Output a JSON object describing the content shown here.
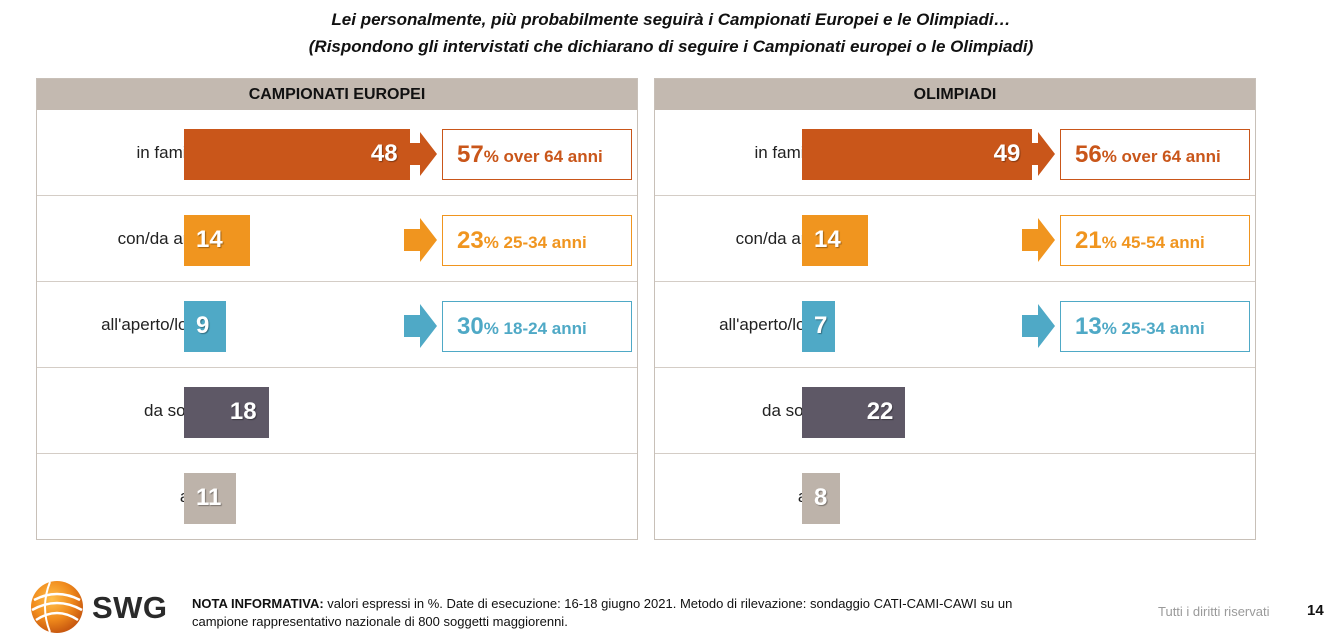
{
  "title_line1": "Lei personalmente, più probabilmente seguirà i Campionati Europei e le Olimpiadi…",
  "title_line2": "(Rispondono gli intervistati che dichiarano di seguire i Campionati europei o le Olimpiadi)",
  "colors": {
    "famiglia": "#c9561a",
    "amici": "#f0951f",
    "aperto": "#4fa9c6",
    "solo": "#5e5866",
    "altro": "#bdb3aa",
    "header_bg": "#c3b9b0"
  },
  "chart_data": [
    {
      "type": "bar",
      "title": "CAMPIONATI EUROPEI",
      "categories": [
        "in famiglia",
        "con/da amici",
        "all'aperto/locali",
        "da solo/a",
        "altro"
      ],
      "values": [
        48,
        14,
        9,
        18,
        11
      ],
      "annotations": [
        {
          "category": "in famiglia",
          "value": "57",
          "text": "% over 64 anni"
        },
        {
          "category": "con/da amici",
          "value": "23",
          "text": "% 25-34 anni"
        },
        {
          "category": "all'aperto/locali",
          "value": "30",
          "text": "% 18-24 anni"
        }
      ]
    },
    {
      "type": "bar",
      "title": "OLIMPIADI",
      "categories": [
        "in famiglia",
        "con/da amici",
        "all'aperto/locali",
        "da solo/a",
        "altro"
      ],
      "values": [
        49,
        14,
        7,
        22,
        8
      ],
      "annotations": [
        {
          "category": "in famiglia",
          "value": "56",
          "text": "% over 64 anni"
        },
        {
          "category": "con/da amici",
          "value": "21",
          "text": "% 45-54 anni"
        },
        {
          "category": "all'aperto/locali",
          "value": "13",
          "text": "% 25-34 anni"
        }
      ]
    }
  ],
  "footer": {
    "brand": "SWG",
    "note_label": "NOTA INFORMATIVA:",
    "note_text": " valori espressi in %. Date di esecuzione: 16-18 giugno 2021. Metodo di rilevazione: sondaggio CATI-CAMI-CAWI su un campione rappresentativo nazionale di 800 soggetti maggiorenni.",
    "rights": "Tutti i diritti riservati",
    "page_number": "14"
  }
}
